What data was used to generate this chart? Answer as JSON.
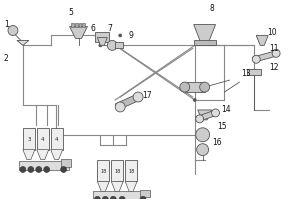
{
  "bg_color": "#ffffff",
  "line_color": "#888888",
  "ec": "#555555",
  "fc": "#dddddd",
  "figsize": [
    3.0,
    2.0
  ],
  "dpi": 100,
  "pipe_lw": 0.8,
  "comp_lw": 0.6
}
